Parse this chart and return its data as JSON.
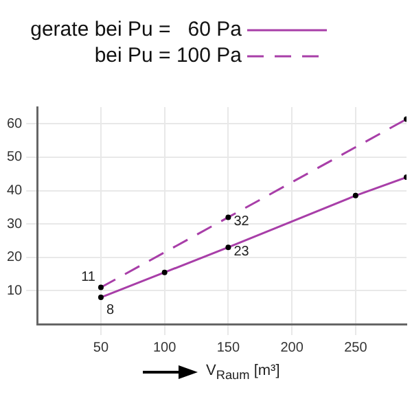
{
  "chart_data": {
    "type": "line",
    "xlabel": "V$_{Raum}$ [m³]",
    "xlim": [
      0,
      290
    ],
    "xticks": [
      50,
      100,
      150,
      200,
      250
    ],
    "ylim": [
      0,
      65
    ],
    "yticks": [
      10,
      20,
      30,
      40,
      50,
      60
    ],
    "grid": true,
    "legend": "top",
    "marker": "circle",
    "series": [
      {
        "name": "gerate bei Pu =   60 Pa",
        "color": "#a83ea8",
        "line_style": "solid",
        "x": [
          50,
          100,
          150,
          250,
          290
        ],
        "values": [
          8,
          15.5,
          23,
          38.5,
          44
        ],
        "value_labels": [
          "8",
          null,
          "23",
          null,
          null
        ]
      },
      {
        "name": "bei Pu = 100 Pa",
        "color": "#a83ea8",
        "line_style": "dashed",
        "x": [
          50,
          150,
          290
        ],
        "values": [
          11,
          32,
          61.4
        ],
        "value_labels": [
          "11",
          "32",
          null
        ]
      }
    ]
  }
}
